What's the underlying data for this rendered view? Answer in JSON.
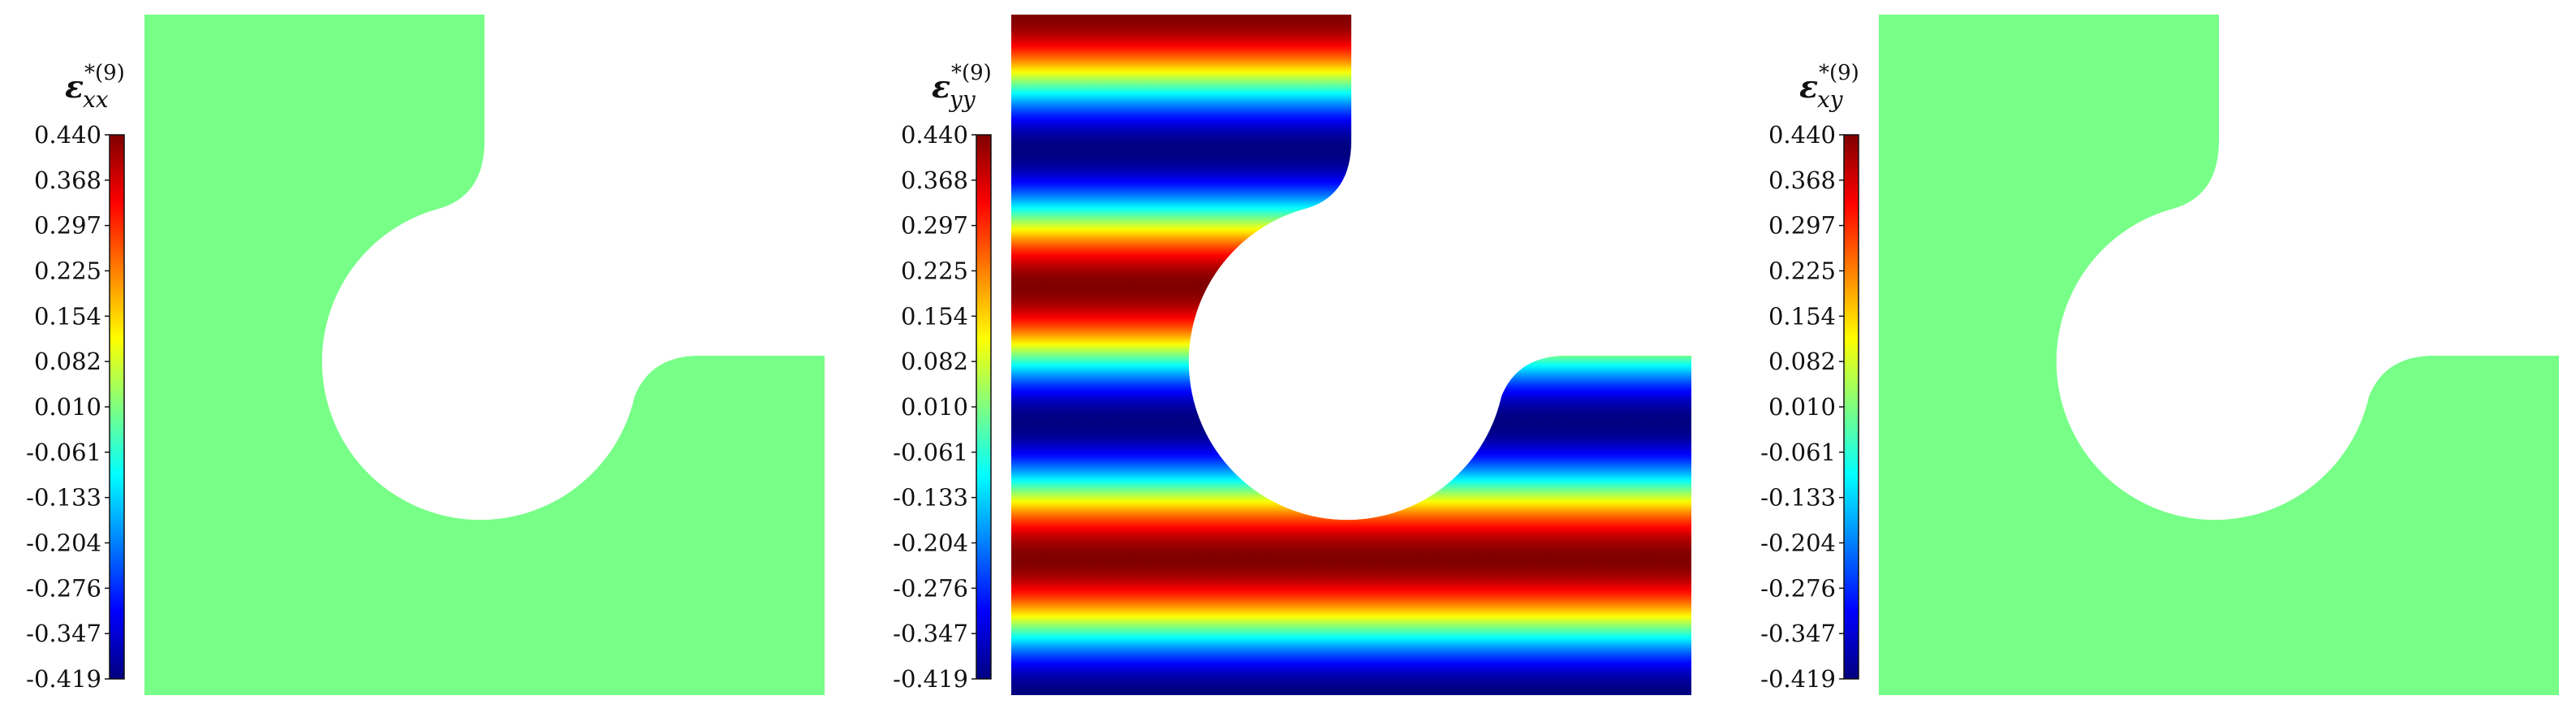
{
  "chart_data": [
    {
      "type": "heatmap",
      "title": {
        "symbol": "ε",
        "subscript": "xx",
        "superscript": "*(9)"
      },
      "colormap": "jet",
      "colorbar": {
        "min": -0.419,
        "max": 0.44,
        "ticks": [
          "0.440",
          "0.368",
          "0.297",
          "0.225",
          "0.154",
          "0.082",
          "0.010",
          "-0.061",
          "-0.133",
          "-0.204",
          "-0.276",
          "-0.347",
          "-0.419"
        ]
      },
      "field": {
        "kind": "uniform",
        "value": 0.0,
        "uniform_color": "#77ff88"
      }
    },
    {
      "type": "heatmap",
      "title": {
        "symbol": "ε",
        "subscript": "yy",
        "superscript": "*(9)"
      },
      "colormap": "jet",
      "colorbar": {
        "min": -0.419,
        "max": 0.44,
        "ticks": [
          "0.440",
          "0.368",
          "0.297",
          "0.225",
          "0.154",
          "0.082",
          "0.010",
          "-0.061",
          "-0.133",
          "-0.204",
          "-0.276",
          "-0.347",
          "-0.419"
        ]
      },
      "field": {
        "kind": "cosine_bands",
        "mean": 0.0105,
        "amplitude": 0.4295,
        "periods": 2.5
      }
    },
    {
      "type": "heatmap",
      "title": {
        "symbol": "ε",
        "subscript": "xy",
        "superscript": "*(9)"
      },
      "colormap": "jet",
      "colorbar": {
        "min": -0.419,
        "max": 0.44,
        "ticks": [
          "0.440",
          "0.368",
          "0.297",
          "0.225",
          "0.154",
          "0.082",
          "0.010",
          "-0.061",
          "-0.133",
          "-0.204",
          "-0.276",
          "-0.347",
          "-0.419"
        ]
      },
      "field": {
        "kind": "uniform",
        "value": 0.0,
        "uniform_color": "#77ff88"
      }
    }
  ]
}
